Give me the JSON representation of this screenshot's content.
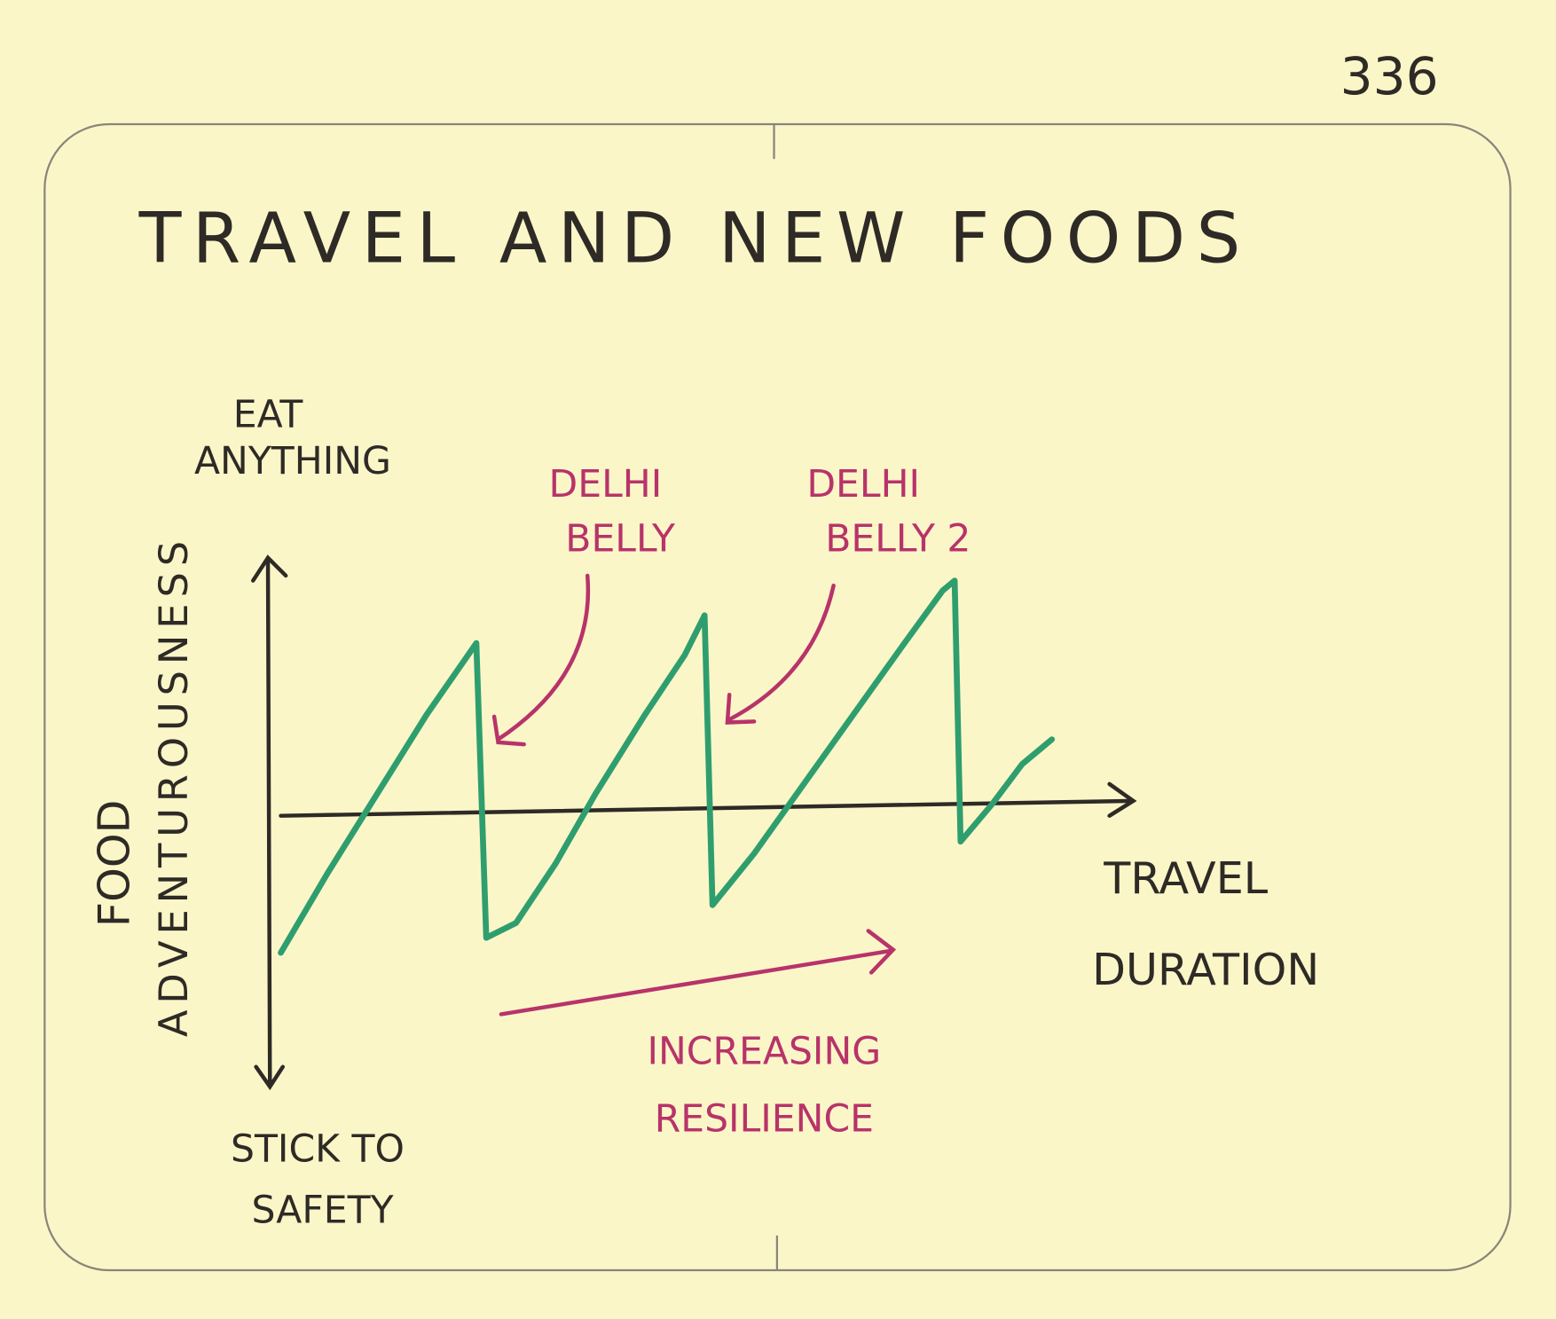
{
  "page_number": "336",
  "title": "TRAVEL AND NEW FOODS",
  "y_axis": {
    "label": [
      "FOOD",
      "ADVENTUROUSNESS"
    ],
    "top": [
      "EAT",
      "ANYTHING"
    ],
    "bottom": [
      "STICK TO",
      "SAFETY"
    ]
  },
  "x_axis": {
    "label": [
      "TRAVEL",
      "DURATION"
    ]
  },
  "annotations": [
    {
      "lines": [
        "DELHI",
        "BELLY"
      ]
    },
    {
      "lines": [
        "DELHI",
        "BELLY 2"
      ]
    },
    {
      "lines": [
        "INCREASING",
        "RESILIENCE"
      ]
    }
  ]
}
